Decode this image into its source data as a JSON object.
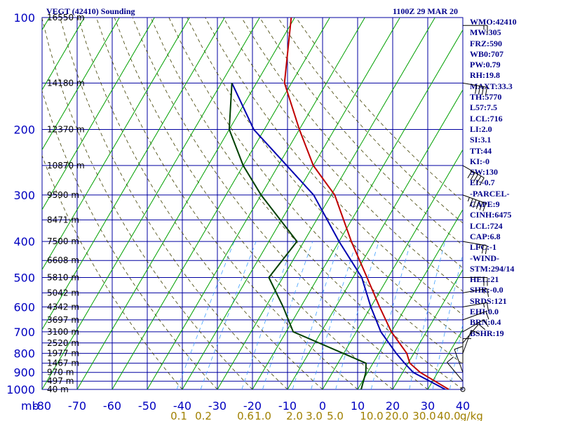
{
  "header": {
    "title": "VEGT (42410) Sounding",
    "datetime": "1100Z 29 MAR 20"
  },
  "indices": [
    "WMO:42410",
    "MW:305",
    "FRZ:590",
    "WB0:707",
    "PW:0.79",
    "RH:19.8",
    "MAXT:33.3",
    "TH:5770",
    "L57:7.5",
    "LCL:716",
    "LI:2.0",
    "SI:3.1",
    "TT:44",
    "KI:-0",
    "SW:130",
    "EI:-0.7",
    "-PARCEL-",
    "CAPE:9",
    "CINH:6475",
    "LCL:724",
    "CAP:6.8",
    "LFC:-1",
    "-WIND-",
    "STM:294/14",
    "HEL:21",
    "SHR:-0.0",
    "SRDS:121",
    "EHI:0.0",
    "BRN:0.4",
    "BSHR:19"
  ],
  "chart_data": {
    "type": "line",
    "subtype": "skew-t log-p sounding",
    "x_axis": {
      "label": "",
      "ticks": [
        "-80",
        "-70",
        "-60",
        "-50",
        "-40",
        "-30",
        "-20",
        "-10",
        "0",
        "10",
        "20",
        "30",
        "40"
      ],
      "range": [
        -80,
        40
      ]
    },
    "y_axis": {
      "unit_label": "mb",
      "scale": "log",
      "ticks": [
        "100",
        "200",
        "300",
        "400",
        "500",
        "600",
        "700",
        "800",
        "900",
        "1000"
      ],
      "range": [
        1000,
        100
      ]
    },
    "mixing_ratio_labels": [
      "0.1",
      "0.2",
      "0.6",
      "1.0",
      "2.0",
      "3.0",
      "5.0",
      "10.0",
      "20.0",
      "30.0",
      "40.0"
    ],
    "mixing_ratio_unit": "g/kg",
    "height_labels": [
      {
        "p": 100,
        "label": "16550 m"
      },
      {
        "p": 150,
        "label": "14180 m"
      },
      {
        "p": 200,
        "label": "12370 m"
      },
      {
        "p": 250,
        "label": "10870 m"
      },
      {
        "p": 300,
        "label": "9590 m"
      },
      {
        "p": 350,
        "label": "8471 m"
      },
      {
        "p": 400,
        "label": "7500 m"
      },
      {
        "p": 450,
        "label": "6608 m"
      },
      {
        "p": 500,
        "label": "5810 m"
      },
      {
        "p": 550,
        "label": "5042 m"
      },
      {
        "p": 600,
        "label": "4342 m"
      },
      {
        "p": 650,
        "label": "3697 m"
      },
      {
        "p": 700,
        "label": "3100 m"
      },
      {
        "p": 750,
        "label": "2520 m"
      },
      {
        "p": 800,
        "label": "1977 m"
      },
      {
        "p": 850,
        "label": "1467 m"
      },
      {
        "p": 900,
        "label": "970 m"
      },
      {
        "p": 950,
        "label": "497 m"
      },
      {
        "p": 1000,
        "label": "40 m"
      }
    ],
    "series": [
      {
        "name": "temperature",
        "color": "#c00000",
        "points": [
          {
            "p": 100,
            "t": -71
          },
          {
            "p": 150,
            "t": -62
          },
          {
            "p": 200,
            "t": -50
          },
          {
            "p": 250,
            "t": -40
          },
          {
            "p": 300,
            "t": -29
          },
          {
            "p": 400,
            "t": -16.5
          },
          {
            "p": 500,
            "t": -6
          },
          {
            "p": 600,
            "t": 2.5
          },
          {
            "p": 700,
            "t": 10
          },
          {
            "p": 800,
            "t": 18
          },
          {
            "p": 850,
            "t": 20.5
          },
          {
            "p": 900,
            "t": 25
          },
          {
            "p": 1000,
            "t": 36
          }
        ]
      },
      {
        "name": "parcel",
        "color": "#0000b0",
        "points": [
          {
            "p": 150,
            "t": -77
          },
          {
            "p": 200,
            "t": -63
          },
          {
            "p": 300,
            "t": -35
          },
          {
            "p": 400,
            "t": -20
          },
          {
            "p": 500,
            "t": -7.5
          },
          {
            "p": 600,
            "t": 0
          },
          {
            "p": 700,
            "t": 7
          },
          {
            "p": 800,
            "t": 15
          },
          {
            "p": 850,
            "t": 19
          },
          {
            "p": 900,
            "t": 23
          },
          {
            "p": 1000,
            "t": 35
          }
        ]
      },
      {
        "name": "dewpoint",
        "color": "#004000",
        "points": [
          {
            "p": 150,
            "t": -77
          },
          {
            "p": 200,
            "t": -70
          },
          {
            "p": 250,
            "t": -60
          },
          {
            "p": 300,
            "t": -50
          },
          {
            "p": 400,
            "t": -32
          },
          {
            "p": 500,
            "t": -34
          },
          {
            "p": 600,
            "t": -25
          },
          {
            "p": 700,
            "t": -18
          },
          {
            "p": 850,
            "t": 8
          },
          {
            "p": 900,
            "t": 9.5
          },
          {
            "p": 1000,
            "t": 11
          }
        ]
      }
    ],
    "wind_barbs": [
      {
        "p": 105,
        "dir": 270,
        "spd": 15
      },
      {
        "p": 150,
        "dir": 280,
        "spd": 40
      },
      {
        "p": 250,
        "dir": 300,
        "spd": 50
      },
      {
        "p": 300,
        "dir": 290,
        "spd": 55
      },
      {
        "p": 400,
        "dir": 280,
        "spd": 25
      },
      {
        "p": 500,
        "dir": 270,
        "spd": 20
      },
      {
        "p": 550,
        "dir": 260,
        "spd": 15
      },
      {
        "p": 600,
        "dir": 260,
        "spd": 15
      },
      {
        "p": 650,
        "dir": 250,
        "spd": 10
      },
      {
        "p": 700,
        "dir": 240,
        "spd": 10
      },
      {
        "p": 750,
        "dir": 220,
        "spd": 10
      },
      {
        "p": 800,
        "dir": 200,
        "spd": 10
      },
      {
        "p": 850,
        "dir": 180,
        "spd": 10
      },
      {
        "p": 900,
        "dir": 160,
        "spd": 10
      },
      {
        "p": 950,
        "dir": 140,
        "spd": 10
      },
      {
        "p": 1000,
        "dir": 0,
        "spd": 0
      }
    ],
    "grid": true
  }
}
